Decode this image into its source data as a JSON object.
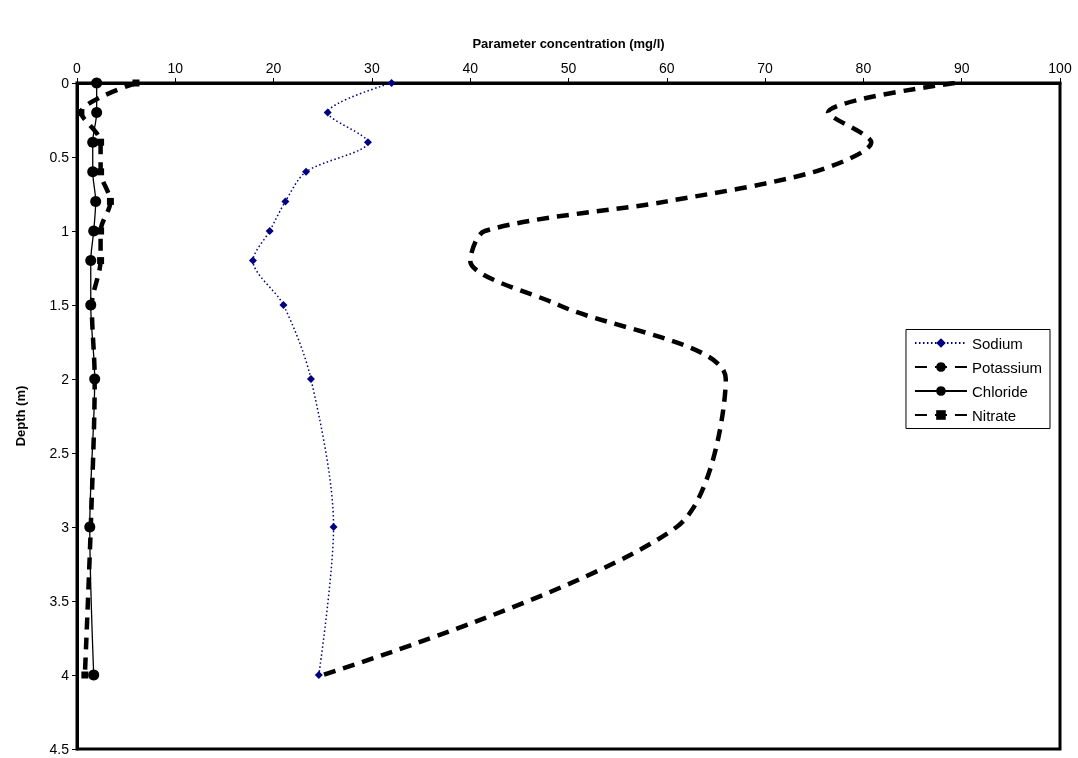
{
  "chart_data": {
    "type": "line",
    "xlabel": "Parameter concentration (mg/l)",
    "ylabel": "Depth (m)",
    "xlim": [
      0,
      100
    ],
    "xticks": [
      0,
      10,
      20,
      30,
      40,
      50,
      60,
      70,
      80,
      90,
      100
    ],
    "ylim": [
      4.5,
      0
    ],
    "yticks": [
      0,
      0.5,
      1,
      1.5,
      2,
      2.5,
      3,
      3.5,
      4,
      4.5
    ],
    "grid": false,
    "legend": "right",
    "series": [
      {
        "name": "Sodium",
        "color": "#000080",
        "marker": "diamond",
        "line_style": "dotted",
        "x": [
          32,
          25.5,
          29.6,
          23.3,
          21.2,
          19.6,
          17.9,
          21,
          23.8,
          26.1,
          24.6
        ],
        "values": [
          0,
          0.2,
          0.4,
          0.6,
          0.8,
          1,
          1.2,
          1.5,
          2,
          3,
          4
        ]
      },
      {
        "name": "Potassium",
        "color": "#000000",
        "marker": "none",
        "line_style": "dashed",
        "x": [
          89.3,
          76.4,
          80.8,
          75,
          60,
          41.5,
          40,
          49,
          66,
          61,
          25
        ],
        "values": [
          0,
          0.2,
          0.4,
          0.6,
          0.8,
          1,
          1.2,
          1.5,
          2,
          3,
          4
        ]
      },
      {
        "name": "Chloride",
        "color": "#000000",
        "marker": "circle",
        "line_style": "solid",
        "x": [
          2,
          2,
          1.6,
          1.6,
          1.9,
          1.7,
          1.4,
          1.4,
          1.8,
          1.3,
          1.7
        ],
        "values": [
          0,
          0.2,
          0.4,
          0.6,
          0.8,
          1,
          1.2,
          1.5,
          2,
          3,
          4
        ]
      },
      {
        "name": "Nitrate",
        "color": "#000000",
        "marker": "square",
        "line_style": "dashed",
        "x": [
          6,
          0.4,
          2.4,
          2.4,
          3.4,
          2.4,
          2.4,
          1.5,
          1.8,
          1.4,
          0.8
        ],
        "values": [
          0,
          0.2,
          0.4,
          0.6,
          0.8,
          1,
          1.2,
          1.5,
          2,
          3,
          4
        ]
      }
    ]
  }
}
